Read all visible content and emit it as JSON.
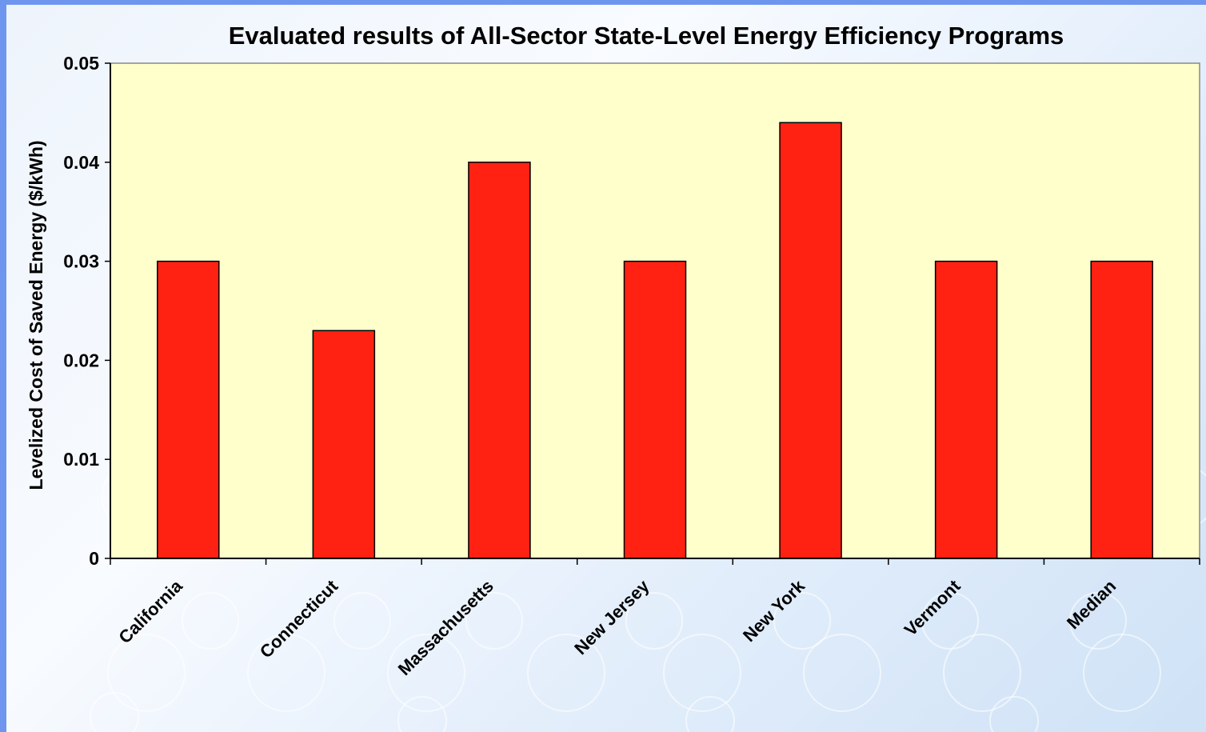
{
  "chart_data": {
    "type": "bar",
    "title": "Evaluated results of All-Sector State-Level Energy Efficiency Programs",
    "xlabel": "",
    "ylabel": "Levelized Cost of Saved Energy ($/kWh)",
    "categories": [
      "California",
      "Connecticut",
      "Massachusetts",
      "New Jersey",
      "New York",
      "Vermont",
      "Median"
    ],
    "values": [
      0.03,
      0.023,
      0.04,
      0.03,
      0.044,
      0.03,
      0.03
    ],
    "ylim": [
      0,
      0.05
    ],
    "yticks": [
      0,
      0.01,
      0.02,
      0.03,
      0.04,
      0.05
    ],
    "ytick_labels": [
      "0",
      "0.01",
      "0.02",
      "0.03",
      "0.04",
      "0.05"
    ],
    "grid": false,
    "legend": "none",
    "colors": {
      "bar": "#ff2212",
      "plot_background": "#ffffcc",
      "frame": "#6f96ee"
    }
  }
}
